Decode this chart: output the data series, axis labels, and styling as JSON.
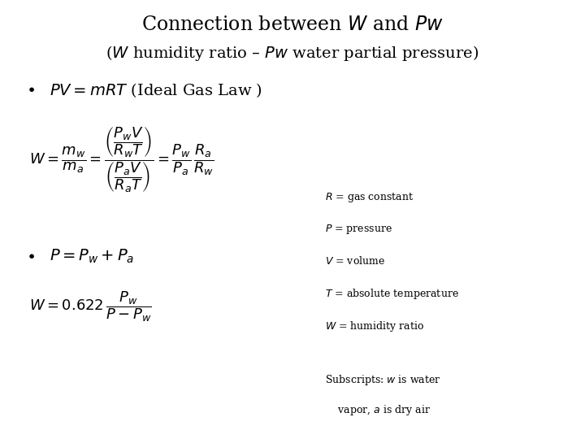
{
  "background_color": "#ffffff",
  "title_line1": "Connection between $\\mathit{W}$ and $\\mathit{Pw}$",
  "title_line2": "($\\mathit{W}$ humidity ratio – $\\mathit{Pw}$ water partial pressure)",
  "bullet1_text": "$\\mathit{PV} = \\mathit{mRT}$ (Ideal Gas Law )",
  "eq1": "$W = \\dfrac{m_w}{m_a} = \\dfrac{\\left(\\dfrac{P_w V}{R_w T}\\right)}{\\left(\\dfrac{P_a V}{R_a T}\\right)} = \\dfrac{P_w}{P_a}\\,\\dfrac{R_a}{R_w}$",
  "bullet2_text": "$P = P_w + P_a$",
  "eq2": "$W = 0.622\\,\\dfrac{P_w}{P - P_w}$",
  "legend_lines": [
    "$R$ = gas constant",
    "$P$ = pressure",
    "$V$ = volume",
    "$T$ = absolute temperature",
    "$W$ = humidity ratio"
  ],
  "subscript_line1": "Subscripts: $w$ is water",
  "subscript_line2": "    vapor, $a$ is dry air",
  "title_fontsize": 17,
  "subtitle_fontsize": 14,
  "bullet_fontsize": 14,
  "eq_fontsize": 13,
  "legend_fontsize": 9,
  "subscript_fontsize": 9
}
